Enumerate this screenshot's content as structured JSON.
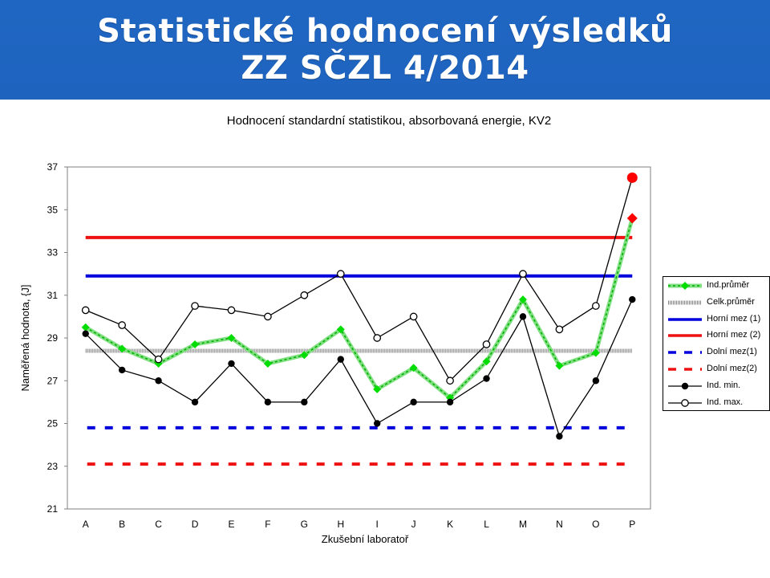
{
  "header": {
    "title_line1": "Statistické hodnocení výsledků",
    "title_line2": "ZZ SČZL 4/2014"
  },
  "chart_data": {
    "type": "line",
    "title": "Hodnocení standardní statistikou, absorbovaná energie, KV2",
    "xlabel": "Zkušební laboratoř",
    "ylabel": "Naměřená hodnota, {J]",
    "ylim": [
      21,
      37
    ],
    "yticks": [
      "21",
      "23",
      "25",
      "27",
      "29",
      "31",
      "33",
      "35",
      "37"
    ],
    "categories": [
      "A",
      "B",
      "C",
      "D",
      "E",
      "F",
      "G",
      "H",
      "I",
      "J",
      "K",
      "L",
      "M",
      "N",
      "O",
      "P"
    ],
    "grid": false,
    "legend_position": "right",
    "series": [
      {
        "name": "Ind.průměr",
        "kind": "line",
        "color": "#00cc00",
        "marker": "diamond",
        "values": [
          29.5,
          28.5,
          27.8,
          28.7,
          29.0,
          27.8,
          28.2,
          29.4,
          26.6,
          27.6,
          26.2,
          27.9,
          30.8,
          27.7,
          28.3,
          34.6
        ],
        "outlier_color": "#ff0000",
        "outlier_index": 15
      },
      {
        "name": "Celk.průměr",
        "kind": "hline",
        "color": "#808080",
        "value": 28.4
      },
      {
        "name": "Horní mez (1)",
        "kind": "hline",
        "color": "#0000dd",
        "value": 31.9
      },
      {
        "name": "Horní mez (2)",
        "kind": "hline",
        "color": "#ee1111",
        "value": 33.7
      },
      {
        "name": "Dolní mez(1)",
        "kind": "hline-dashed",
        "color": "#0000dd",
        "value": 24.8
      },
      {
        "name": "Dolní mez(2)",
        "kind": "hline-dashed",
        "color": "#ee1111",
        "value": 23.1
      },
      {
        "name": "Ind. min.",
        "kind": "line",
        "color": "#000000",
        "marker": "filled-circle",
        "values": [
          29.2,
          27.5,
          27.0,
          26.0,
          27.8,
          26.0,
          26.0,
          28.0,
          25.0,
          26.0,
          26.0,
          27.1,
          30.0,
          24.4,
          27.0,
          30.8
        ]
      },
      {
        "name": "Ind. max.",
        "kind": "line",
        "color": "#000000",
        "marker": "open-circle",
        "values": [
          30.3,
          29.6,
          28.0,
          30.5,
          30.3,
          30.0,
          31.0,
          32.0,
          29.0,
          30.0,
          27.0,
          28.7,
          32.0,
          29.4,
          30.5,
          36.5
        ],
        "outlier_color": "#ff0000",
        "outlier_index": 15
      }
    ]
  }
}
